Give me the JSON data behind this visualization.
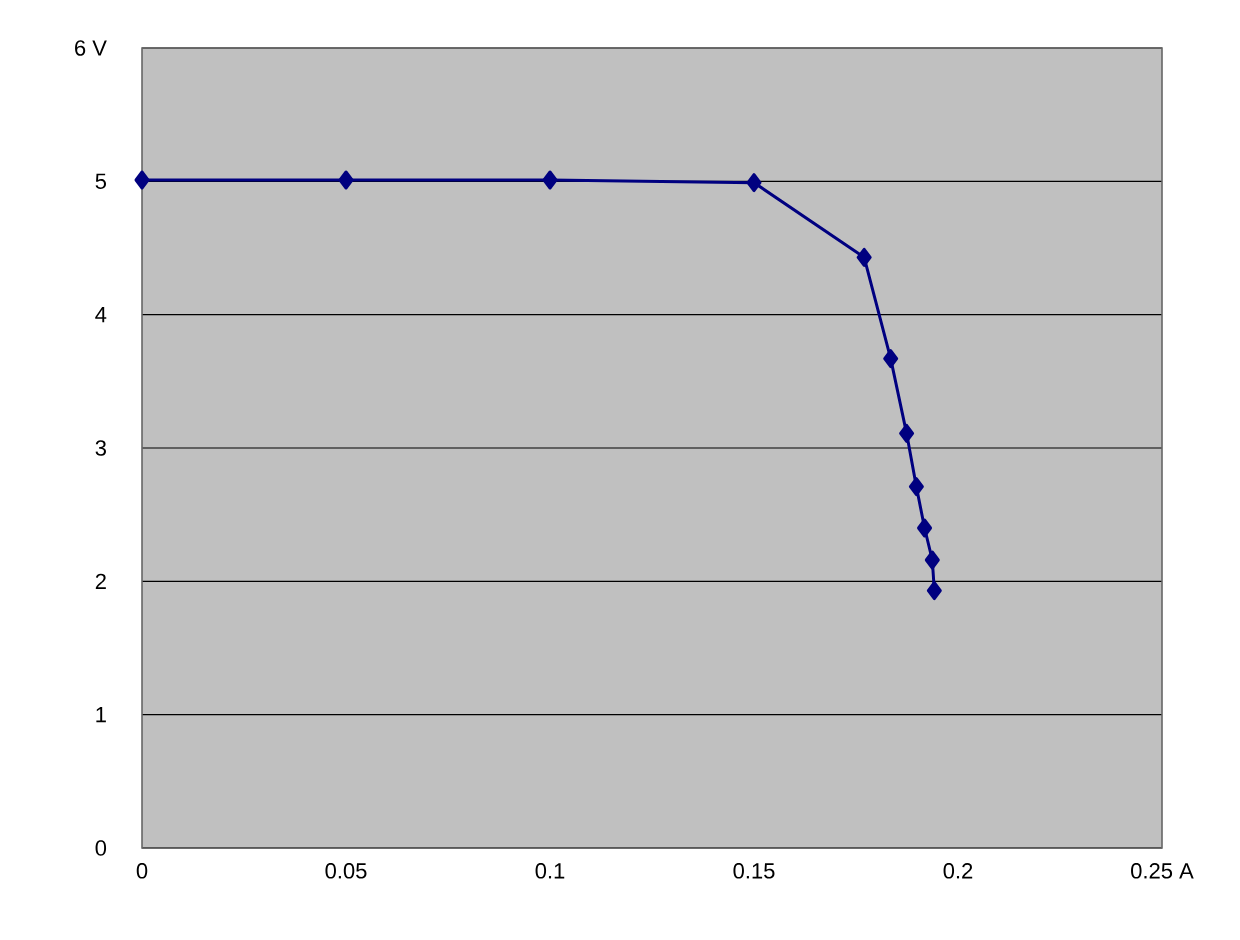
{
  "chart_data": {
    "type": "line",
    "x": [
      0,
      0.05,
      0.1,
      0.15,
      0.177,
      0.1835,
      0.1874,
      0.1898,
      0.1918,
      0.1937,
      0.1942
    ],
    "values": [
      5.01,
      5.01,
      5.01,
      4.99,
      4.43,
      3.67,
      3.11,
      2.71,
      2.4,
      2.16,
      1.93
    ],
    "color": "#000080",
    "marker": "diamond",
    "line_style": "solid",
    "grid": "y",
    "xlim": [
      0,
      0.25
    ],
    "ylim": [
      0,
      6
    ],
    "xticks": [
      0,
      0.05,
      0.1,
      0.15,
      0.2,
      {
        "value": 0.25,
        "label": "0.25 A"
      }
    ],
    "yticks": [
      0,
      1,
      2,
      3,
      4,
      5,
      {
        "value": 6,
        "label": "6 V"
      }
    ]
  }
}
